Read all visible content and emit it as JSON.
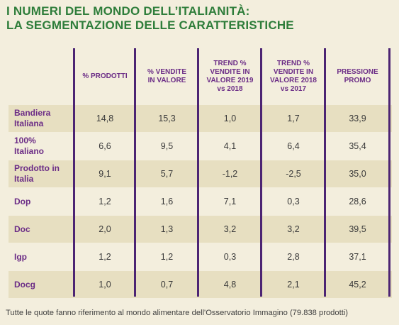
{
  "title": {
    "line1": "I NUMERI DEL MONDO DELL’ITALIANITÀ:",
    "line2": "LA SEGMENTAZIONE DELLE CARATTERISTICHE"
  },
  "columns": [
    {
      "label": "% PRODOTTI"
    },
    {
      "label": "% VENDITE\nIN VALORE"
    },
    {
      "label": "TREND %\nVENDITE IN\nVALORE 2019\nvs 2018"
    },
    {
      "label": "TREND %\nVENDITE IN\nVALORE 2018\nvs 2017"
    },
    {
      "label": "PRESSIONE\nPROMO"
    }
  ],
  "rows": [
    {
      "label": "Bandiera\nItaliana",
      "values": [
        "14,8",
        "15,3",
        "1,0",
        "1,7",
        "33,9"
      ]
    },
    {
      "label": "100%\nItaliano",
      "values": [
        "6,6",
        "9,5",
        "4,1",
        "6,4",
        "35,4"
      ]
    },
    {
      "label": "Prodotto in\nItalia",
      "values": [
        "9,1",
        "5,7",
        "-1,2",
        "-2,5",
        "35,0"
      ]
    },
    {
      "label": "Dop",
      "values": [
        "1,2",
        "1,6",
        "7,1",
        "0,3",
        "28,6"
      ]
    },
    {
      "label": "Doc",
      "values": [
        "2,0",
        "1,3",
        "3,2",
        "3,2",
        "39,5"
      ]
    },
    {
      "label": "Igp",
      "values": [
        "1,2",
        "1,2",
        "0,3",
        "2,8",
        "37,1"
      ]
    },
    {
      "label": "Docg",
      "values": [
        "1,0",
        "0,7",
        "4,8",
        "2,1",
        "45,2"
      ]
    }
  ],
  "footnote": "Tutte le quote fanno riferimento al mondo alimentare dell'Osservatorio Immagino (79.838 prodotti)"
}
